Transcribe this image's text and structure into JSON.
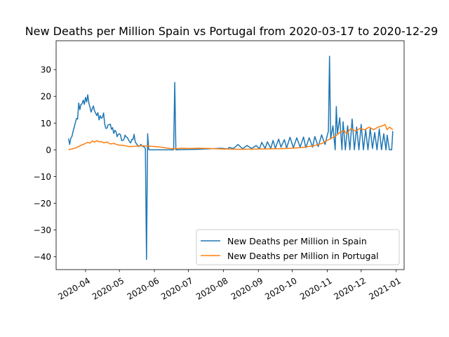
{
  "chart_data": {
    "type": "line",
    "title": "New Deaths per Million Spain vs Portugal from 2020-03-17 to 2020-12-29",
    "xlabel": "",
    "ylabel": "",
    "x_range": [
      "2020-03-06",
      "2021-01-08"
    ],
    "ylim": [
      -44.8,
      40.8
    ],
    "y_ticks": [
      -40,
      -30,
      -20,
      -10,
      0,
      10,
      20,
      30
    ],
    "y_tick_labels": [
      "−40",
      "−30",
      "−20",
      "−10",
      "0",
      "10",
      "20",
      "30"
    ],
    "x_ticks": [
      "2020-04-01",
      "2020-05-01",
      "2020-06-01",
      "2020-07-01",
      "2020-08-01",
      "2020-09-01",
      "2020-10-01",
      "2020-11-01",
      "2020-12-01",
      "2021-01-01"
    ],
    "x_tick_labels": [
      "2020-04",
      "2020-05",
      "2020-06",
      "2020-07",
      "2020-08",
      "2020-09",
      "2020-10",
      "2020-11",
      "2020-12",
      "2021-01"
    ],
    "grid": false,
    "legend_position": "bottom-right",
    "series": [
      {
        "name": "New Deaths per Million in Spain",
        "color": "#1f77b4",
        "points": [
          [
            "2020-03-17",
            4.2
          ],
          [
            "2020-03-18",
            2.0
          ],
          [
            "2020-03-19",
            4.4
          ],
          [
            "2020-03-20",
            5.0
          ],
          [
            "2020-03-21",
            6.9
          ],
          [
            "2020-03-22",
            8.5
          ],
          [
            "2020-03-23",
            10.1
          ],
          [
            "2020-03-24",
            11.7
          ],
          [
            "2020-03-25",
            11.5
          ],
          [
            "2020-03-26",
            17.5
          ],
          [
            "2020-03-27",
            15.0
          ],
          [
            "2020-03-28",
            17.0
          ],
          [
            "2020-03-29",
            17.2
          ],
          [
            "2020-03-30",
            18.6
          ],
          [
            "2020-03-31",
            17.0
          ],
          [
            "2020-04-01",
            19.6
          ],
          [
            "2020-04-02",
            17.9
          ],
          [
            "2020-04-03",
            20.6
          ],
          [
            "2020-04-04",
            17.4
          ],
          [
            "2020-04-05",
            15.9
          ],
          [
            "2020-04-06",
            14.1
          ],
          [
            "2020-04-07",
            15.4
          ],
          [
            "2020-04-08",
            16.4
          ],
          [
            "2020-04-09",
            14.5
          ],
          [
            "2020-04-10",
            13.7
          ],
          [
            "2020-04-11",
            12.8
          ],
          [
            "2020-04-12",
            13.9
          ],
          [
            "2020-04-13",
            11.2
          ],
          [
            "2020-04-14",
            12.8
          ],
          [
            "2020-04-15",
            11.8
          ],
          [
            "2020-04-16",
            12.1
          ],
          [
            "2020-04-17",
            13.8
          ],
          [
            "2020-04-18",
            9.6
          ],
          [
            "2020-04-19",
            8.0
          ],
          [
            "2020-04-20",
            8.1
          ],
          [
            "2020-04-21",
            9.3
          ],
          [
            "2020-04-22",
            9.4
          ],
          [
            "2020-04-23",
            9.6
          ],
          [
            "2020-04-24",
            7.7
          ],
          [
            "2020-04-25",
            8.3
          ],
          [
            "2020-04-26",
            6.1
          ],
          [
            "2020-04-27",
            7.3
          ],
          [
            "2020-04-28",
            6.8
          ],
          [
            "2020-04-29",
            4.9
          ],
          [
            "2020-04-30",
            5.8
          ],
          [
            "2020-05-01",
            6.0
          ],
          [
            "2020-05-02",
            5.6
          ],
          [
            "2020-05-03",
            3.5
          ],
          [
            "2020-05-04",
            3.5
          ],
          [
            "2020-05-05",
            3.9
          ],
          [
            "2020-05-06",
            5.5
          ],
          [
            "2020-05-07",
            4.8
          ],
          [
            "2020-05-08",
            4.6
          ],
          [
            "2020-05-09",
            3.8
          ],
          [
            "2020-05-10",
            3.0
          ],
          [
            "2020-05-11",
            2.6
          ],
          [
            "2020-05-12",
            3.9
          ],
          [
            "2020-05-13",
            3.8
          ],
          [
            "2020-05-14",
            5.8
          ],
          [
            "2020-05-15",
            3.0
          ],
          [
            "2020-05-16",
            2.3
          ],
          [
            "2020-05-17",
            1.8
          ],
          [
            "2020-05-18",
            1.2
          ],
          [
            "2020-05-19",
            1.5
          ],
          [
            "2020-05-20",
            2.0
          ],
          [
            "2020-05-21",
            1.5
          ],
          [
            "2020-05-22",
            1.2
          ],
          [
            "2020-05-23",
            1.0
          ],
          [
            "2020-05-24",
            0.5
          ],
          [
            "2020-05-25",
            -41.0
          ],
          [
            "2020-05-26",
            6.0
          ],
          [
            "2020-05-27",
            0.0
          ],
          [
            "2020-05-28",
            0.0
          ],
          [
            "2020-05-29",
            0.0
          ],
          [
            "2020-05-30",
            0.0
          ],
          [
            "2020-05-31",
            0.0
          ],
          [
            "2020-06-01",
            0.0
          ],
          [
            "2020-06-10",
            0.0
          ],
          [
            "2020-06-18",
            0.0
          ],
          [
            "2020-06-19",
            25.2
          ],
          [
            "2020-06-20",
            0.0
          ],
          [
            "2020-06-30",
            0.1
          ],
          [
            "2020-07-10",
            0.2
          ],
          [
            "2020-07-20",
            0.4
          ],
          [
            "2020-07-30",
            0.6
          ],
          [
            "2020-08-05",
            0.3
          ],
          [
            "2020-08-06",
            0.9
          ],
          [
            "2020-08-10",
            0.5
          ],
          [
            "2020-08-14",
            2.0
          ],
          [
            "2020-08-18",
            0.4
          ],
          [
            "2020-08-22",
            1.6
          ],
          [
            "2020-08-26",
            0.5
          ],
          [
            "2020-08-30",
            1.6
          ],
          [
            "2020-09-02",
            0.4
          ],
          [
            "2020-09-04",
            2.8
          ],
          [
            "2020-09-07",
            0.5
          ],
          [
            "2020-09-09",
            3.0
          ],
          [
            "2020-09-12",
            0.5
          ],
          [
            "2020-09-14",
            3.5
          ],
          [
            "2020-09-16",
            0.6
          ],
          [
            "2020-09-19",
            4.0
          ],
          [
            "2020-09-21",
            1.0
          ],
          [
            "2020-09-24",
            3.8
          ],
          [
            "2020-09-26",
            0.7
          ],
          [
            "2020-09-29",
            4.7
          ],
          [
            "2020-10-02",
            0.8
          ],
          [
            "2020-10-05",
            4.5
          ],
          [
            "2020-10-08",
            1.0
          ],
          [
            "2020-10-11",
            4.8
          ],
          [
            "2020-10-13",
            0.8
          ],
          [
            "2020-10-16",
            4.5
          ],
          [
            "2020-10-19",
            1.0
          ],
          [
            "2020-10-21",
            5.0
          ],
          [
            "2020-10-24",
            1.2
          ],
          [
            "2020-10-27",
            5.6
          ],
          [
            "2020-10-30",
            2.0
          ],
          [
            "2020-11-02",
            7.0
          ],
          [
            "2020-11-03",
            35.0
          ],
          [
            "2020-11-04",
            4.0
          ],
          [
            "2020-11-06",
            9.0
          ],
          [
            "2020-11-08",
            0.0
          ],
          [
            "2020-11-09",
            16.2
          ],
          [
            "2020-11-10",
            6.0
          ],
          [
            "2020-11-12",
            12.0
          ],
          [
            "2020-11-14",
            0.0
          ],
          [
            "2020-11-15",
            10.5
          ],
          [
            "2020-11-17",
            0.0
          ],
          [
            "2020-11-19",
            9.0
          ],
          [
            "2020-11-21",
            0.0
          ],
          [
            "2020-11-23",
            11.5
          ],
          [
            "2020-11-25",
            0.0
          ],
          [
            "2020-11-27",
            8.5
          ],
          [
            "2020-11-29",
            0.0
          ],
          [
            "2020-12-01",
            9.5
          ],
          [
            "2020-12-03",
            0.0
          ],
          [
            "2020-12-05",
            7.5
          ],
          [
            "2020-12-07",
            0.0
          ],
          [
            "2020-12-09",
            8.0
          ],
          [
            "2020-12-11",
            0.5
          ],
          [
            "2020-12-13",
            6.5
          ],
          [
            "2020-12-15",
            0.0
          ],
          [
            "2020-12-17",
            7.8
          ],
          [
            "2020-12-19",
            0.0
          ],
          [
            "2020-12-21",
            6.0
          ],
          [
            "2020-12-23",
            0.0
          ],
          [
            "2020-12-24",
            5.5
          ],
          [
            "2020-12-26",
            0.0
          ],
          [
            "2020-12-28",
            0.0
          ],
          [
            "2020-12-29",
            7.0
          ]
        ]
      },
      {
        "name": "New Deaths per Million in Portugal",
        "color": "#ff7f0e",
        "points": [
          [
            "2020-03-17",
            0.1
          ],
          [
            "2020-03-20",
            0.3
          ],
          [
            "2020-03-24",
            0.8
          ],
          [
            "2020-03-27",
            1.5
          ],
          [
            "2020-03-31",
            2.2
          ],
          [
            "2020-04-03",
            2.8
          ],
          [
            "2020-04-05",
            2.5
          ],
          [
            "2020-04-07",
            3.3
          ],
          [
            "2020-04-09",
            2.9
          ],
          [
            "2020-04-11",
            3.4
          ],
          [
            "2020-04-13",
            3.0
          ],
          [
            "2020-04-15",
            3.1
          ],
          [
            "2020-04-17",
            2.6
          ],
          [
            "2020-04-20",
            2.9
          ],
          [
            "2020-04-23",
            2.2
          ],
          [
            "2020-04-26",
            2.4
          ],
          [
            "2020-04-30",
            1.8
          ],
          [
            "2020-05-05",
            1.6
          ],
          [
            "2020-05-10",
            1.2
          ],
          [
            "2020-05-15",
            1.3
          ],
          [
            "2020-05-20",
            1.5
          ],
          [
            "2020-05-25",
            1.4
          ],
          [
            "2020-05-30",
            1.3
          ],
          [
            "2020-06-05",
            1.1
          ],
          [
            "2020-06-10",
            0.8
          ],
          [
            "2020-06-15",
            0.5
          ],
          [
            "2020-06-20",
            0.4
          ],
          [
            "2020-06-25",
            0.6
          ],
          [
            "2020-07-01",
            0.5
          ],
          [
            "2020-07-10",
            0.6
          ],
          [
            "2020-07-20",
            0.5
          ],
          [
            "2020-08-01",
            0.3
          ],
          [
            "2020-08-15",
            0.2
          ],
          [
            "2020-09-01",
            0.3
          ],
          [
            "2020-09-15",
            0.4
          ],
          [
            "2020-10-01",
            0.6
          ],
          [
            "2020-10-10",
            0.9
          ],
          [
            "2020-10-20",
            1.5
          ],
          [
            "2020-10-28",
            2.5
          ],
          [
            "2020-11-03",
            4.0
          ],
          [
            "2020-11-08",
            5.0
          ],
          [
            "2020-11-12",
            6.5
          ],
          [
            "2020-11-16",
            7.2
          ],
          [
            "2020-11-18",
            6.0
          ],
          [
            "2020-11-22",
            8.0
          ],
          [
            "2020-11-26",
            7.0
          ],
          [
            "2020-11-30",
            8.0
          ],
          [
            "2020-12-04",
            7.5
          ],
          [
            "2020-12-08",
            8.5
          ],
          [
            "2020-12-12",
            7.5
          ],
          [
            "2020-12-16",
            8.5
          ],
          [
            "2020-12-20",
            9.0
          ],
          [
            "2020-12-22",
            9.5
          ],
          [
            "2020-12-24",
            7.5
          ],
          [
            "2020-12-26",
            8.5
          ],
          [
            "2020-12-29",
            7.5
          ]
        ]
      }
    ]
  }
}
